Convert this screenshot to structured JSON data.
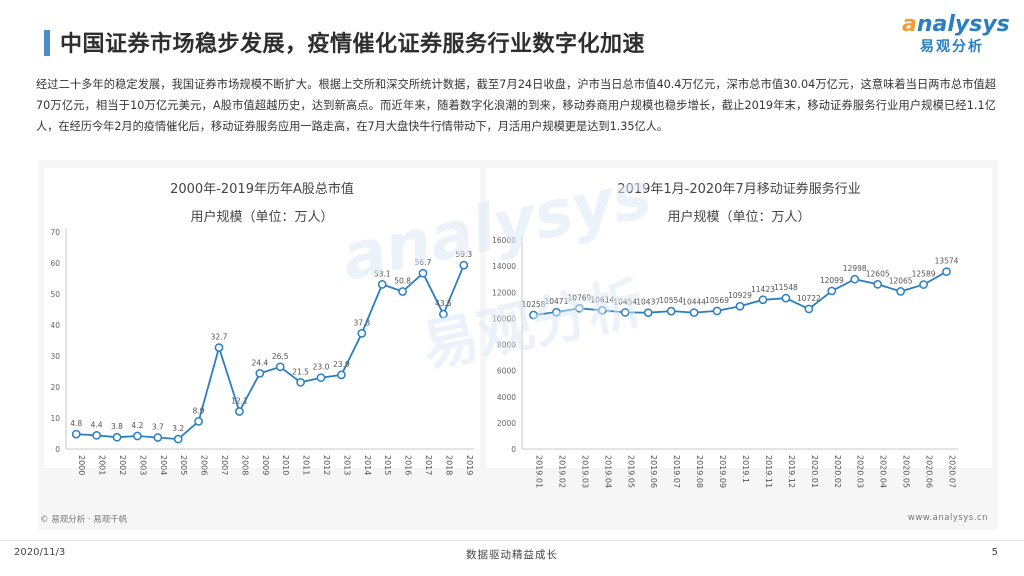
{
  "header": {
    "title": "中国证券市场稳步发展，疫情催化证券服务行业数字化加速",
    "logo_en_a": "a",
    "logo_en_rest": "nalysys",
    "logo_cn": "易观分析"
  },
  "intro": "经过二十多年的稳定发展，我国证券市场规模不断扩大。根据上交所和深交所统计数据，截至7月24日收盘，沪市当日总市值40.4万亿元，深市总市值30.04万亿元，这意味着当日两市总市值超70万亿元，相当于10万亿元美元，A股市值超越历史，达到新高点。而近年来，随着数字化浪潮的到来，移动券商用户规模也稳步增长，截止2019年末，移动证券服务行业用户规模已经1.1亿人，在经历今年2月的疫情催化后，移动证券服务应用一路走高，在7月大盘快牛行情带动下，月活用户规模更是达到1.35亿人。",
  "watermark": {
    "en": "analysys",
    "cn": "易观分析"
  },
  "chart_data": [
    {
      "type": "line",
      "title": "2000年-2019年历年A股总市值",
      "subtitle": "用户规模（单位：万人）",
      "x": [
        "2000",
        "2001",
        "2002",
        "2003",
        "2004",
        "2005",
        "2006",
        "2007",
        "2008",
        "2009",
        "2010",
        "2011",
        "2012",
        "2013",
        "2014",
        "2015",
        "2016",
        "2017",
        "2018",
        "2019"
      ],
      "values": [
        4.8,
        4.4,
        3.8,
        4.2,
        3.7,
        3.2,
        8.9,
        32.7,
        12.1,
        24.4,
        26.5,
        21.5,
        23.0,
        23.9,
        37.3,
        53.1,
        50.8,
        56.7,
        43.5,
        59.3
      ],
      "labels": [
        "4.8",
        "4.4",
        "3.8",
        "4.2",
        "3.7",
        "3.2",
        "8.9",
        "32.7",
        "12.1",
        "24.4",
        "26.5",
        "21.5",
        "23.0",
        "23.9",
        "37.3",
        "53.1",
        "50.8",
        "56.7",
        "43.5",
        "59.3"
      ],
      "ylim": [
        0,
        70
      ],
      "yticks": [
        0,
        10,
        20,
        30,
        40,
        50,
        60,
        70
      ],
      "grid": false,
      "line_color": "#2a7ec2"
    },
    {
      "type": "line",
      "title": "2019年1月-2020年7月移动证券服务行业",
      "subtitle": "用户规模（单位：万人）",
      "x": [
        "2019.01",
        "2019.02",
        "2019.03",
        "2019.04",
        "2019.05",
        "2019.06",
        "2019.07",
        "2019.08",
        "2019.09",
        "2019.1",
        "2019.11",
        "2019.12",
        "2020.01",
        "2020.02",
        "2020.03",
        "2020.04",
        "2020.05",
        "2020.06",
        "2020.07"
      ],
      "values": [
        10258,
        10471,
        10769,
        10614,
        10454,
        10437,
        10554,
        10444,
        10569,
        10929,
        11423,
        11548,
        10722,
        12099,
        12998,
        12605,
        12065,
        12589,
        13574
      ],
      "labels": [
        "10258",
        "10471",
        "10769",
        "10614",
        "10454",
        "10437",
        "10554",
        "10444",
        "10569",
        "10929",
        "11423",
        "11548",
        "10722",
        "12099",
        "12998",
        "12605",
        "12065",
        "12589",
        "13574"
      ],
      "ylim": [
        0,
        16000
      ],
      "yticks": [
        0,
        2000,
        4000,
        6000,
        8000,
        10000,
        12000,
        14000,
        16000
      ],
      "grid": false,
      "line_color": "#2a7ec2"
    }
  ],
  "source": "© 易观分析 · 易观千帆",
  "website": "www.analysys.cn",
  "footer": {
    "date": "2020/11/3",
    "slogan": "数据驱动精益成长",
    "page": "5"
  }
}
